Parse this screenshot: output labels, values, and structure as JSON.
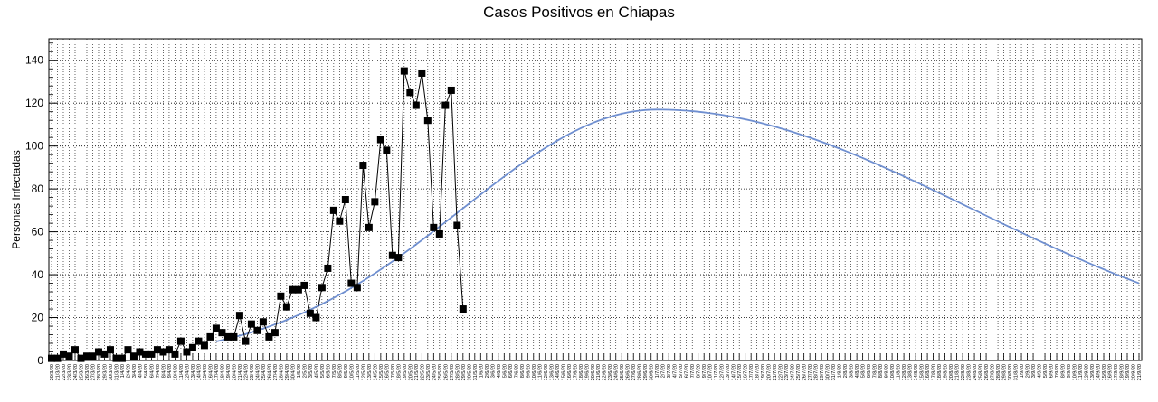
{
  "chart_data": {
    "type": "line",
    "title": "Casos Positivos en Chiapas",
    "xlabel": "",
    "ylabel": "Personas Infectadas",
    "ylim": [
      0,
      150
    ],
    "yticks": [
      0,
      20,
      40,
      60,
      80,
      100,
      120,
      140
    ],
    "grid": true,
    "xticks": [
      "20/3/20",
      "21/3/20",
      "22/3/20",
      "23/3/20",
      "24/3/20",
      "25/3/20",
      "26/3/20",
      "27/3/20",
      "28/3/20",
      "29/3/20",
      "30/3/20",
      "31/3/20",
      "1/4/20",
      "2/4/20",
      "3/4/20",
      "4/4/20",
      "5/4/20",
      "6/4/20",
      "7/4/20",
      "8/4/20",
      "9/4/20",
      "10/4/20",
      "11/4/20",
      "12/4/20",
      "13/4/20",
      "14/4/20",
      "15/4/20",
      "16/4/20",
      "17/4/20",
      "18/4/20",
      "19/4/20",
      "20/4/20",
      "21/4/20",
      "22/4/20",
      "23/4/20",
      "24/4/20",
      "25/4/20",
      "26/4/20",
      "27/4/20",
      "28/4/20",
      "29/4/20",
      "30/4/20",
      "1/5/20",
      "2/5/20",
      "3/5/20",
      "4/5/20",
      "5/5/20",
      "6/5/20",
      "7/5/20",
      "8/5/20",
      "9/5/20",
      "10/5/20",
      "11/5/20",
      "12/5/20",
      "13/5/20",
      "14/5/20",
      "15/5/20",
      "16/5/20",
      "17/5/20",
      "18/5/20",
      "19/5/20",
      "20/5/20",
      "21/5/20",
      "22/5/20",
      "23/5/20",
      "24/5/20",
      "25/5/20",
      "26/5/20",
      "27/5/20",
      "28/5/20",
      "29/5/20",
      "30/5/20",
      "31/5/20",
      "1/6/20",
      "2/6/20",
      "3/6/20",
      "4/6/20",
      "5/6/20",
      "6/6/20",
      "7/6/20",
      "8/6/20",
      "9/6/20",
      "10/6/20",
      "11/6/20",
      "12/6/20",
      "13/6/20",
      "14/6/20",
      "15/6/20",
      "16/6/20",
      "17/6/20",
      "18/6/20",
      "19/6/20",
      "20/6/20",
      "21/6/20",
      "22/6/20",
      "23/6/20",
      "24/6/20",
      "25/6/20",
      "26/6/20",
      "27/6/20",
      "28/6/20",
      "29/6/20",
      "30/6/20",
      "1/7/20",
      "2/7/20",
      "3/7/20",
      "4/7/20",
      "5/7/20",
      "6/7/20",
      "7/7/20",
      "8/7/20",
      "9/7/20",
      "10/7/20",
      "11/7/20",
      "12/7/20",
      "13/7/20",
      "14/7/20",
      "15/7/20",
      "16/7/20",
      "17/7/20",
      "18/7/20",
      "19/7/20",
      "20/7/20",
      "21/7/20",
      "22/7/20",
      "23/7/20",
      "24/7/20",
      "25/7/20",
      "26/7/20",
      "27/7/20",
      "28/7/20",
      "29/7/20",
      "30/7/20",
      "31/7/20",
      "1/8/20",
      "2/8/20",
      "3/8/20",
      "4/8/20",
      "5/8/20",
      "6/8/20",
      "7/8/20",
      "8/8/20",
      "9/8/20",
      "10/8/20",
      "11/8/20",
      "12/8/20",
      "13/8/20",
      "14/8/20",
      "15/8/20",
      "16/8/20",
      "17/8/20",
      "18/8/20",
      "19/8/20",
      "20/8/20",
      "21/8/20",
      "22/8/20",
      "23/8/20",
      "24/8/20",
      "25/8/20",
      "26/8/20",
      "27/8/20",
      "28/8/20",
      "29/8/20",
      "30/8/20",
      "31/8/20",
      "1/9/20",
      "2/9/20",
      "3/9/20",
      "4/9/20",
      "5/9/20",
      "6/9/20",
      "7/9/20",
      "8/9/20",
      "9/9/20",
      "10/9/20",
      "11/9/20",
      "12/9/20",
      "13/9/20",
      "14/9/20",
      "15/9/20",
      "16/9/20",
      "17/9/20",
      "18/9/20",
      "19/9/20",
      "20/9/20",
      "21/9/20"
    ],
    "series": [
      {
        "type": "line-marker",
        "color": "#000000",
        "values": [
          1,
          1,
          3,
          2,
          5,
          1,
          2,
          2,
          4,
          3,
          5,
          1,
          1,
          5,
          2,
          4,
          3,
          3,
          5,
          4,
          5,
          3,
          9,
          4,
          6,
          9,
          7,
          11,
          15,
          13,
          11,
          11,
          21,
          9,
          17,
          14,
          18,
          11,
          13,
          30,
          25,
          33,
          33,
          35,
          22,
          20,
          34,
          43,
          70,
          65,
          75,
          36,
          34,
          91,
          62,
          74,
          103,
          98,
          49,
          48,
          135,
          125,
          119,
          134,
          112,
          62,
          59,
          119,
          126,
          63,
          24
        ]
      },
      {
        "type": "fit",
        "color": "#6f8fd0",
        "peak": 117,
        "peak_index": 103,
        "start_index": 28,
        "end_index": 185,
        "end_value": 36
      }
    ]
  }
}
